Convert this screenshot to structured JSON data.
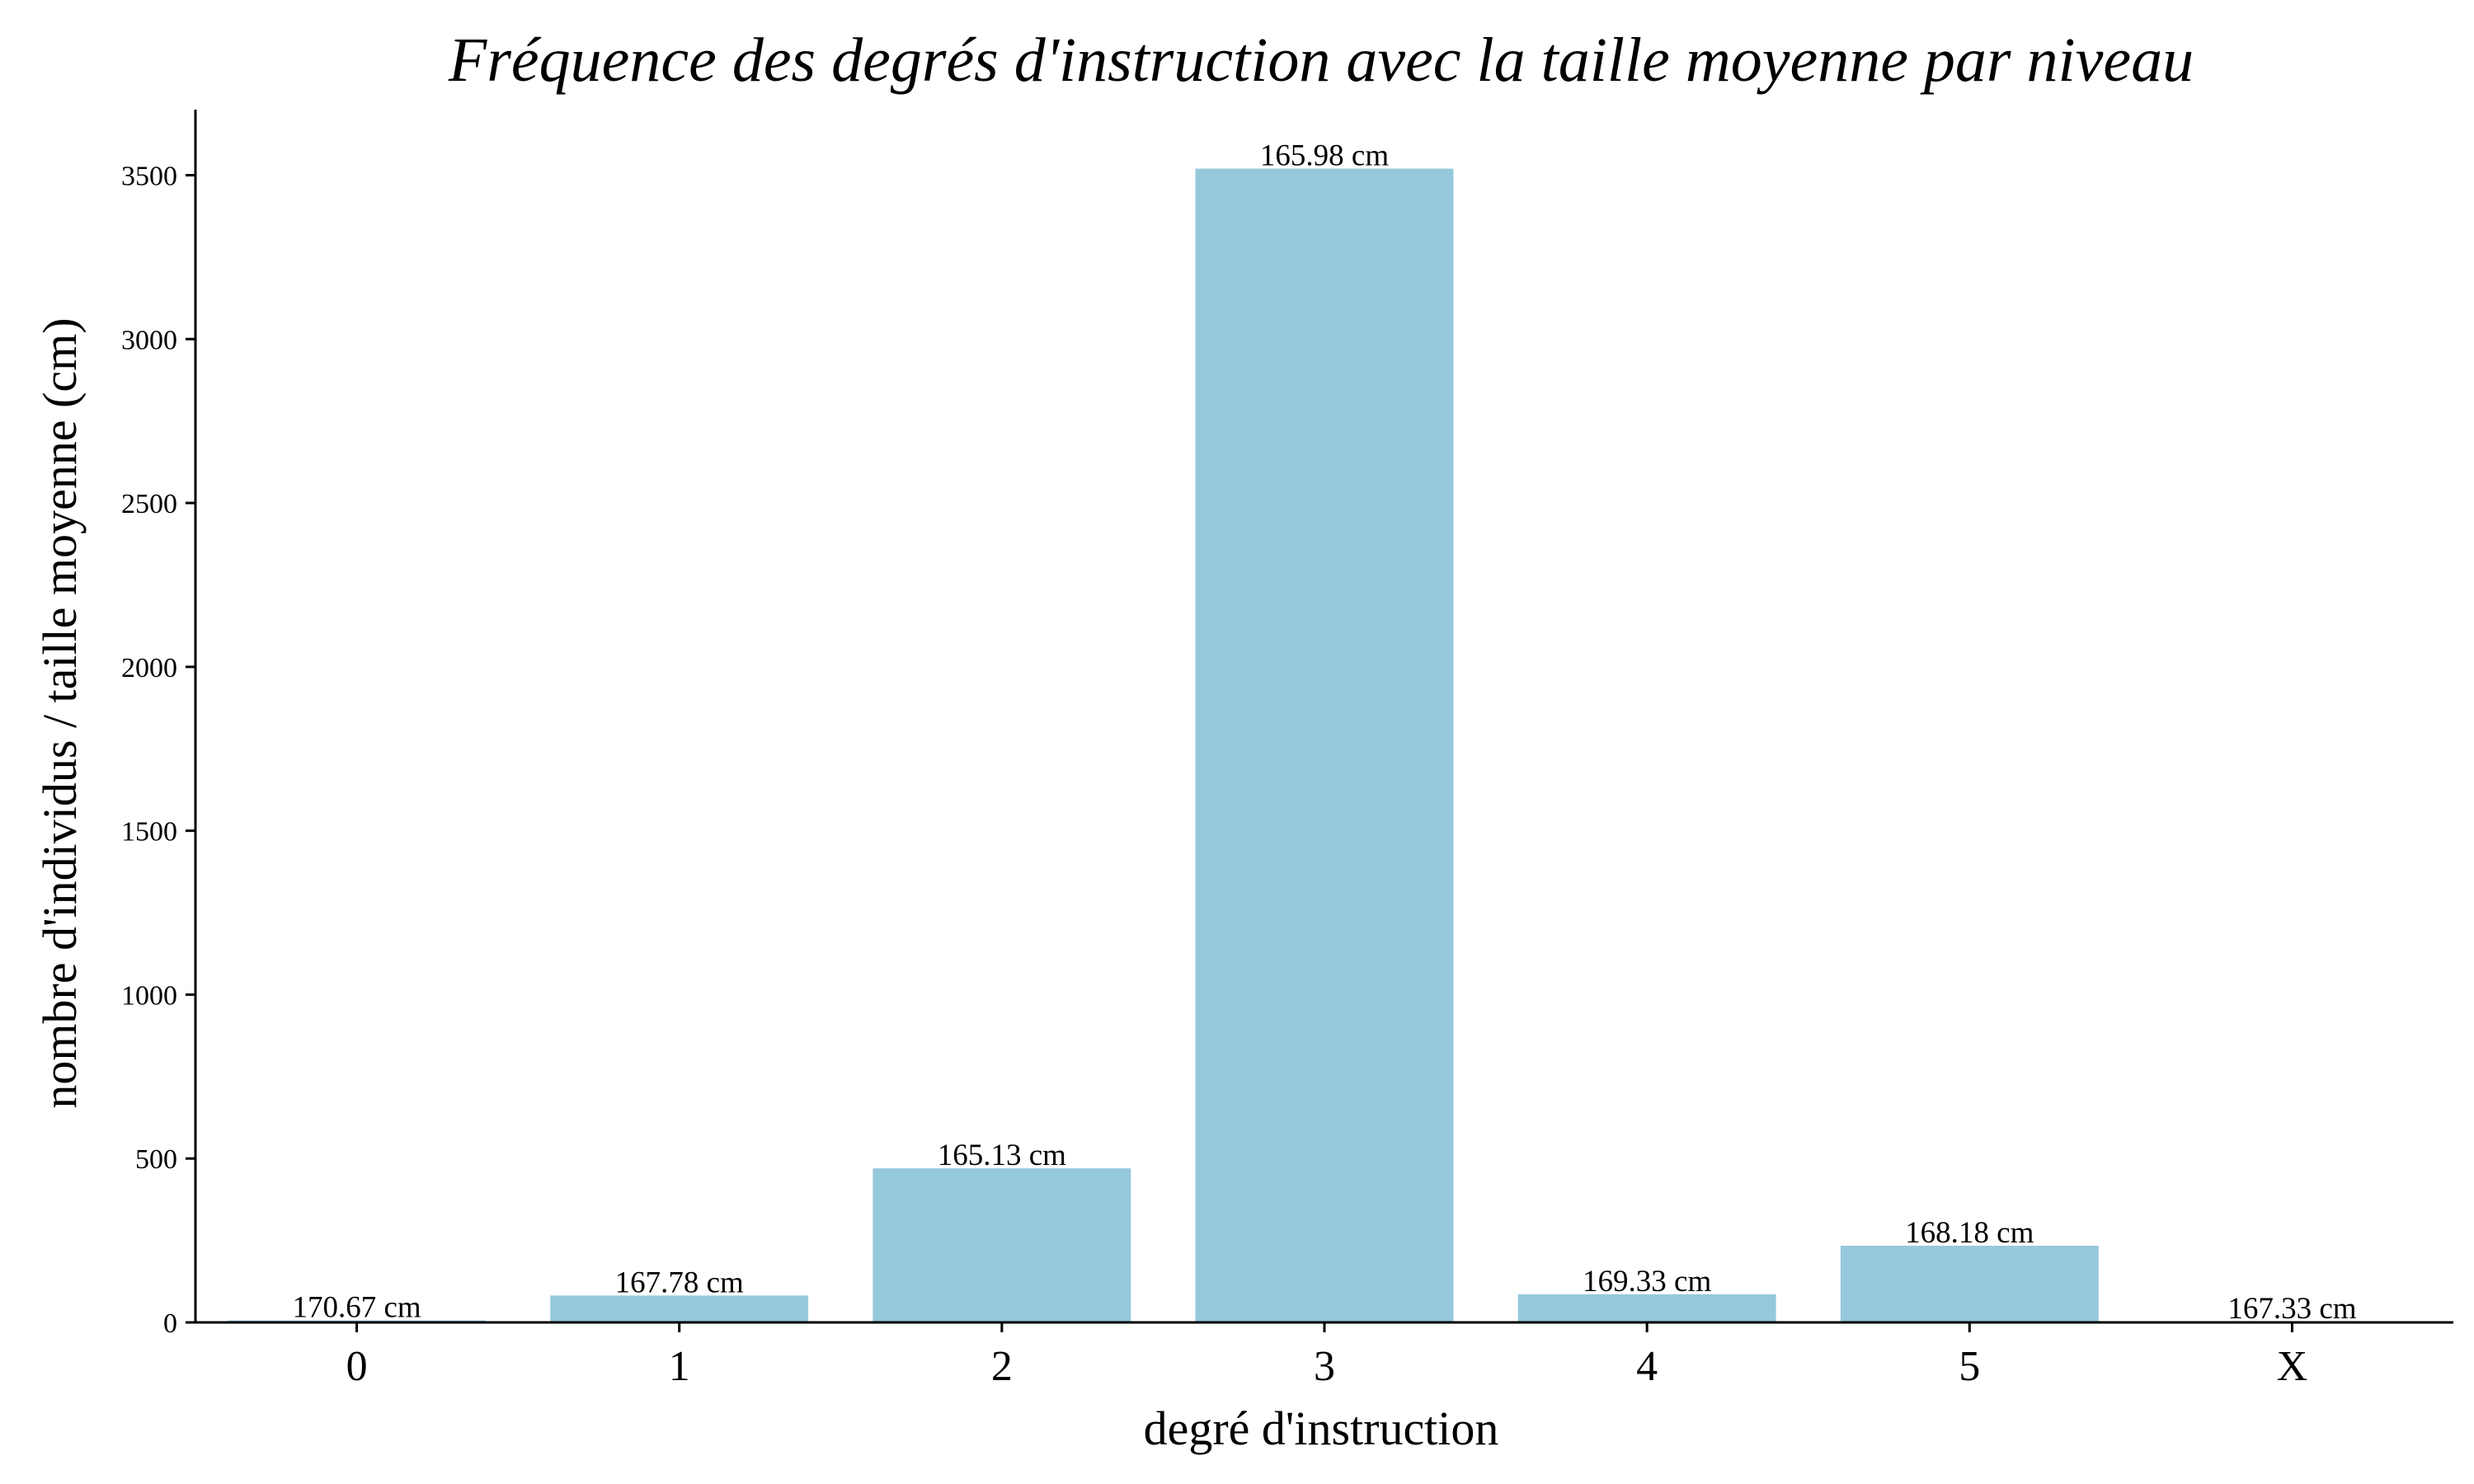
{
  "chart_data": {
    "type": "bar",
    "title": "Fréquence des degrés d'instruction avec la taille moyenne par niveau",
    "xlabel": "degré d'instruction",
    "ylabel": "nombre d'individus / taille moyenne (cm)",
    "categories": [
      "0",
      "1",
      "2",
      "3",
      "4",
      "5",
      "X"
    ],
    "values": [
      6,
      82,
      470,
      3520,
      86,
      234,
      3
    ],
    "bar_labels": [
      "170.67 cm",
      "167.78 cm",
      "165.13 cm",
      "165.98 cm",
      "169.33 cm",
      "168.18 cm",
      "167.33 cm"
    ],
    "ylim": [
      0,
      3700
    ],
    "yticks": [
      0,
      500,
      1000,
      1500,
      2000,
      2500,
      3000,
      3500
    ],
    "grid": false,
    "bar_color": "#96c8dc"
  }
}
